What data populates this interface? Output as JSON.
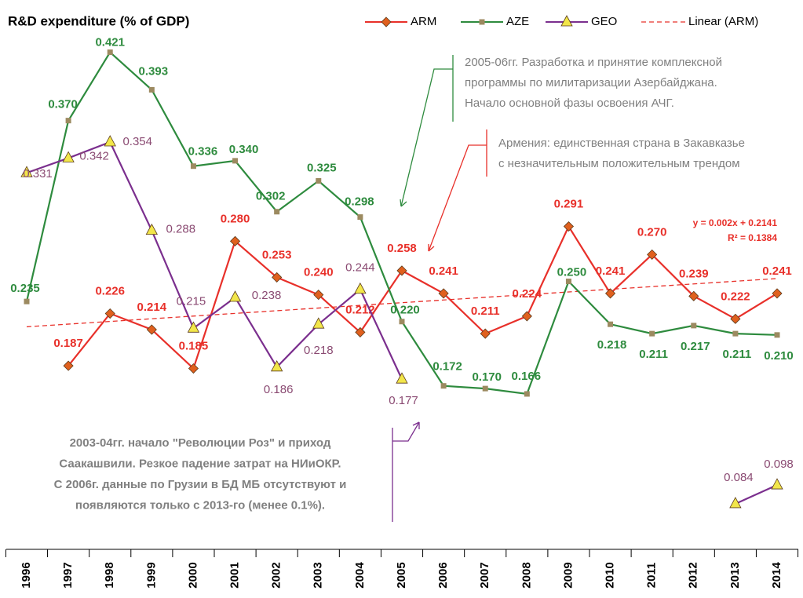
{
  "chart_data": {
    "type": "line",
    "title": "R&D expenditure (% of GDP)",
    "categories": [
      "1996",
      "1997",
      "1998",
      "1999",
      "2000",
      "2001",
      "2002",
      "2003",
      "2004",
      "2005",
      "2006",
      "2007",
      "2008",
      "2009",
      "2010",
      "2011",
      "2012",
      "2013",
      "2014"
    ],
    "ylim": [
      0.05,
      0.46
    ],
    "series": [
      {
        "name": "ARM",
        "color": "#e8302a",
        "marker": "diamond",
        "marker_color": "#e0601e",
        "values": [
          null,
          0.187,
          0.226,
          0.214,
          0.185,
          0.28,
          0.253,
          0.24,
          0.212,
          0.258,
          0.241,
          0.211,
          0.224,
          0.291,
          0.241,
          0.27,
          0.239,
          0.222,
          0.241
        ],
        "value_labels": [
          null,
          "0.187",
          "0.226",
          "0.214",
          "0.185",
          "0.280",
          "0.253",
          "0.240",
          "0.212",
          "0.258",
          "0.241",
          "0.211",
          "0.224",
          "0.291",
          "0.241",
          "0.270",
          "0.239",
          "0.222",
          "0.241"
        ]
      },
      {
        "name": "AZE",
        "color": "#2e8b3e",
        "marker": "square",
        "marker_color": "#9c8a60",
        "values": [
          0.235,
          0.37,
          0.421,
          0.393,
          0.336,
          0.34,
          0.302,
          0.325,
          0.298,
          0.22,
          0.172,
          0.17,
          0.166,
          0.25,
          0.218,
          0.211,
          0.217,
          0.211,
          0.21
        ],
        "value_labels": [
          "0.235",
          "0.370",
          "0.421",
          "0.393",
          "0.336",
          "0.340",
          "0.302",
          "0.325",
          "0.298",
          "0.220",
          "0.172",
          "0.170",
          "0.166",
          "0.250",
          "0.218",
          "0.211",
          "0.217",
          "0.211",
          "0.210"
        ]
      },
      {
        "name": "GEO",
        "color": "#7b2f8e",
        "marker": "triangle",
        "marker_color": "#f2e64a",
        "values": [
          0.331,
          0.342,
          0.354,
          0.288,
          0.215,
          0.238,
          0.186,
          0.218,
          0.244,
          0.177,
          null,
          null,
          null,
          null,
          null,
          null,
          null,
          0.084,
          0.098
        ],
        "value_labels": [
          "0.331",
          "0.342",
          "0.354",
          "0.288",
          "0.215",
          "0.238",
          "0.186",
          "0.218",
          "0.244",
          "0.177",
          null,
          null,
          null,
          null,
          null,
          null,
          null,
          "0.084",
          "0.098"
        ]
      }
    ],
    "trendline": {
      "name": "Linear (ARM)",
      "color": "#e8302a",
      "slope": 0.002,
      "intercept": 0.2141,
      "equation": "y = 0.002x + 0.2141",
      "r2": "R² = 0.1384"
    },
    "annotations": [
      {
        "color": "#2e8b3e",
        "lines": [
          "2005-06гг. Разработка и принятие комплексной",
          "программы по милитаризации Азербайджана.",
          "Начало основной фазы освоения АЧГ."
        ]
      },
      {
        "color": "#e8302a",
        "lines": [
          "Армения: единственная страна в Закавказье",
          "с незначительным положительным трендом"
        ]
      },
      {
        "color": "#7b2f8e",
        "lines": [
          "2003-04гг. начало \"Революции Роз\" и приход",
          "Саакашвили. Резкое падение затрат на НИиОКР.",
          "С 2006г. данные по Грузии в БД МБ отсутствуют и",
          "появляются только с 2013-го (менее 0.1%)."
        ]
      }
    ]
  }
}
